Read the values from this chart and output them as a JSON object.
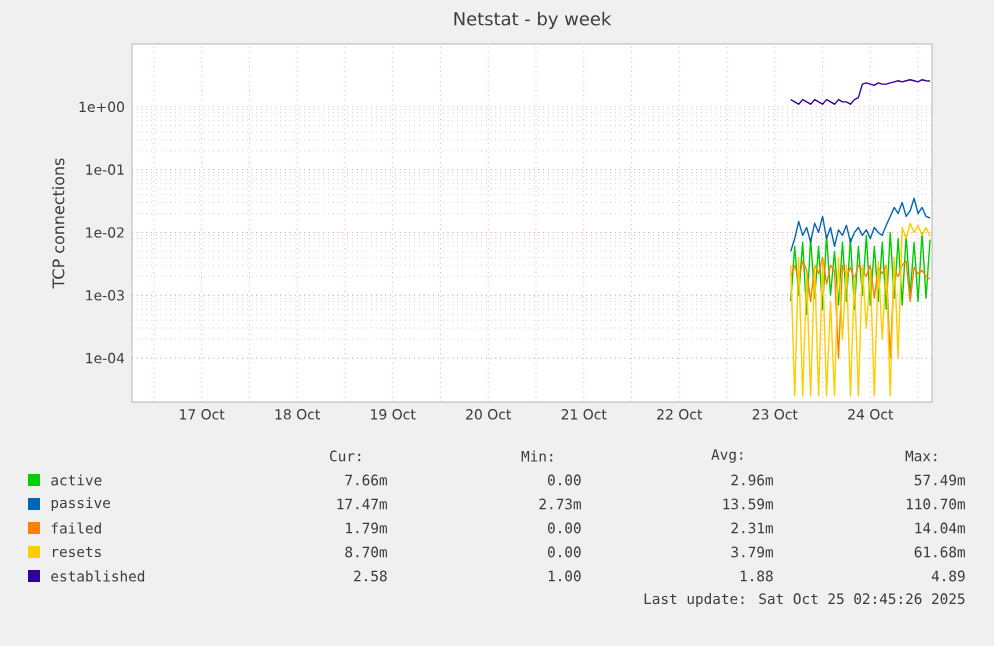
{
  "chart_data": {
    "type": "line",
    "title": "Netstat - by week",
    "ylabel": "TCP connections",
    "log": "y",
    "grid": true,
    "legend": "bottom",
    "marker": "none",
    "line_style": "solid",
    "xlim": [
      "2025-10-16T18:30",
      "2025-10-25T03:30"
    ],
    "ylim": [
      2e-05,
      10
    ],
    "xticks": [
      {
        "value": "2025-10-17T00:00",
        "label": null
      },
      {
        "value": "2025-10-17T12:00",
        "label": "17 Oct"
      },
      {
        "value": "2025-10-18T00:00",
        "label": null
      },
      {
        "value": "2025-10-18T12:00",
        "label": "18 Oct"
      },
      {
        "value": "2025-10-19T00:00",
        "label": null
      },
      {
        "value": "2025-10-19T12:00",
        "label": "19 Oct"
      },
      {
        "value": "2025-10-20T00:00",
        "label": null
      },
      {
        "value": "2025-10-20T12:00",
        "label": "20 Oct"
      },
      {
        "value": "2025-10-21T00:00",
        "label": null
      },
      {
        "value": "2025-10-21T12:00",
        "label": "21 Oct"
      },
      {
        "value": "2025-10-22T00:00",
        "label": null
      },
      {
        "value": "2025-10-22T12:00",
        "label": "22 Oct"
      },
      {
        "value": "2025-10-23T00:00",
        "label": null
      },
      {
        "value": "2025-10-23T12:00",
        "label": "23 Oct"
      },
      {
        "value": "2025-10-24T00:00",
        "label": null
      },
      {
        "value": "2025-10-24T12:00",
        "label": "24 Oct"
      },
      {
        "value": "2025-10-25T00:00",
        "label": null
      }
    ],
    "yticks": [
      {
        "value": 0.0001,
        "label": "1e-04"
      },
      {
        "value": 0.001,
        "label": "1e-03"
      },
      {
        "value": 0.01,
        "label": "1e-02"
      },
      {
        "value": 0.1,
        "label": "1e-01"
      },
      {
        "value": 1,
        "label": "1e+00"
      }
    ],
    "x": [
      "2025-10-23T16:00",
      "2025-10-23T17:00",
      "2025-10-23T18:00",
      "2025-10-23T19:00",
      "2025-10-23T20:00",
      "2025-10-23T21:00",
      "2025-10-23T22:00",
      "2025-10-23T23:00",
      "2025-10-24T00:00",
      "2025-10-24T01:00",
      "2025-10-24T02:00",
      "2025-10-24T03:00",
      "2025-10-24T04:00",
      "2025-10-24T05:00",
      "2025-10-24T06:00",
      "2025-10-24T07:00",
      "2025-10-24T08:00",
      "2025-10-24T09:00",
      "2025-10-24T10:00",
      "2025-10-24T11:00",
      "2025-10-24T12:00",
      "2025-10-24T13:00",
      "2025-10-24T14:00",
      "2025-10-24T15:00",
      "2025-10-24T16:00",
      "2025-10-24T17:00",
      "2025-10-24T18:00",
      "2025-10-24T19:00",
      "2025-10-24T20:00",
      "2025-10-24T21:00",
      "2025-10-24T22:00",
      "2025-10-24T23:00",
      "2025-10-25T00:00",
      "2025-10-25T01:00",
      "2025-10-25T02:00",
      "2025-10-25T03:00"
    ],
    "series": [
      {
        "name": "active",
        "color": "#00cc00",
        "values": [
          0.0008,
          0.006,
          0.001,
          0.007,
          0.0005,
          0.008,
          0.0009,
          0.006,
          0.0006,
          0.009,
          0.001,
          0.005,
          0.0007,
          0.007,
          0.0008,
          0.008,
          0.0006,
          0.006,
          0.001,
          0.009,
          0.0007,
          0.006,
          0.0008,
          0.007,
          0.0006,
          0.01,
          0.0009,
          0.008,
          0.0007,
          0.009,
          0.001,
          0.007,
          0.0008,
          0.01,
          0.0009,
          0.0077
        ]
      },
      {
        "name": "passive",
        "color": "#0066b3",
        "values": [
          0.005,
          0.008,
          0.015,
          0.009,
          0.012,
          0.007,
          0.014,
          0.01,
          0.018,
          0.008,
          0.012,
          0.006,
          0.011,
          0.009,
          0.013,
          0.007,
          0.01,
          0.012,
          0.009,
          0.011,
          0.008,
          0.012,
          0.01,
          0.009,
          0.013,
          0.018,
          0.025,
          0.02,
          0.03,
          0.018,
          0.022,
          0.035,
          0.02,
          0.025,
          0.018,
          0.017
        ]
      },
      {
        "name": "failed",
        "color": "#ff8000",
        "values": [
          0.002,
          0.003,
          0.0018,
          0.0035,
          0.0025,
          0.0008,
          0.003,
          0.0022,
          0.004,
          0.0015,
          0.003,
          0.0025,
          0.0001,
          0.003,
          0.002,
          0.0028,
          0.0018,
          0.003,
          0.0025,
          0.002,
          0.003,
          0.0009,
          0.0028,
          0.0022,
          0.003,
          0.0001,
          0.0025,
          0.002,
          0.003,
          0.0035,
          0.0008,
          0.0028,
          0.0022,
          0.0025,
          0.002,
          0.0018
        ]
      },
      {
        "name": "resets",
        "color": "#ffcc00",
        "values": [
          0.003,
          2.5e-05,
          0.004,
          2.5e-05,
          0.002,
          2.5e-05,
          0.003,
          2.5e-05,
          0.0035,
          2.5e-05,
          0.0008,
          2.5e-05,
          0.004,
          0.0002,
          0.003,
          2.5e-05,
          0.002,
          2.5e-05,
          0.003,
          0.0003,
          0.0025,
          2.5e-05,
          0.0035,
          0.0002,
          0.003,
          2.5e-05,
          0.004,
          0.0001,
          0.012,
          0.008,
          0.014,
          0.01,
          0.013,
          0.009,
          0.012,
          0.0087
        ]
      },
      {
        "name": "established",
        "color": "#330099",
        "values": [
          1.3,
          1.2,
          1.1,
          1.3,
          1.2,
          1.1,
          1.3,
          1.2,
          1.1,
          1.3,
          1.2,
          1.1,
          1.3,
          1.2,
          1.2,
          1.1,
          1.3,
          1.4,
          2.3,
          2.4,
          2.3,
          2.2,
          2.4,
          2.3,
          2.3,
          2.4,
          2.5,
          2.6,
          2.5,
          2.6,
          2.7,
          2.6,
          2.5,
          2.7,
          2.6,
          2.58
        ]
      }
    ],
    "annotations": [
      "Cur:",
      "Min:",
      "Avg:",
      "Max:",
      "7.66m",
      "0.00",
      "2.96m",
      "57.49m",
      "17.47m",
      "2.73m",
      "13.59m",
      "110.70m",
      "1.79m",
      "0.00",
      "2.31m",
      "14.04m",
      "8.70m",
      "0.00",
      "3.79m",
      "61.68m",
      "2.58",
      "1.00",
      "1.88",
      "4.89",
      "Last update: Sat Oct 25 02:45:26 2025"
    ]
  }
}
